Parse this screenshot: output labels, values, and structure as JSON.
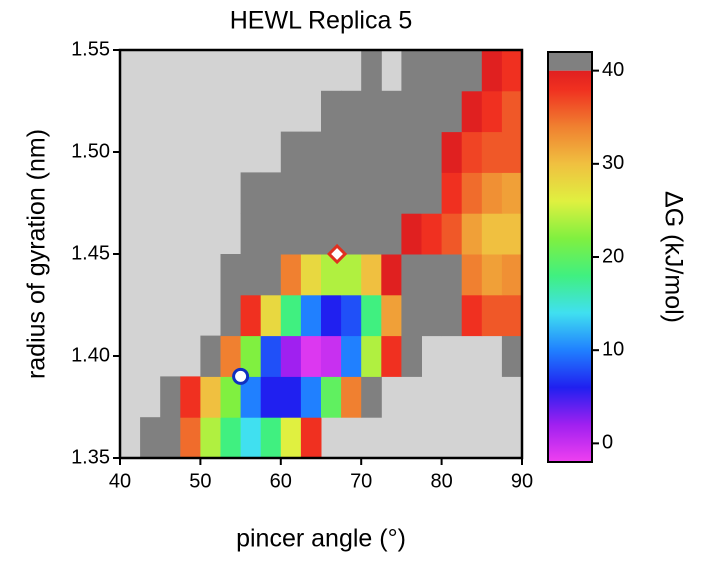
{
  "chart_data": {
    "type": "heatmap",
    "title": "HEWL Replica 5",
    "xlabel": "pincer angle (°)",
    "ylabel": "radius of gyration (nm)",
    "colorbar_label": "ΔG (kJ/mol)",
    "xlim": [
      40,
      90
    ],
    "xticks": [
      40,
      50,
      60,
      70,
      80,
      90
    ],
    "ylim": [
      1.35,
      1.55
    ],
    "yticks": [
      1.35,
      {
        "value": 1.4,
        "label": "1.40"
      },
      1.45,
      {
        "value": 1.5,
        "label": "1.50"
      },
      1.55
    ],
    "clim": [
      -2,
      42
    ],
    "cticks": [
      0,
      10,
      20,
      30,
      40
    ],
    "background": "#d3d3d3",
    "over_color": "#808080",
    "colorscale": [
      [
        -2,
        "#f040f0"
      ],
      [
        2,
        "#a020f0"
      ],
      [
        6,
        "#2020f0"
      ],
      [
        10,
        "#2080ff"
      ],
      [
        14,
        "#40e0f0"
      ],
      [
        18,
        "#40f080"
      ],
      [
        22,
        "#80f040"
      ],
      [
        26,
        "#e0f040"
      ],
      [
        30,
        "#f0c040"
      ],
      [
        34,
        "#f08030"
      ],
      [
        38,
        "#f03020"
      ],
      [
        40,
        "#e02020"
      ]
    ],
    "x_bins": [
      40,
      42.5,
      45,
      47.5,
      50,
      52.5,
      55,
      57.5,
      60,
      62.5,
      65,
      67.5,
      70,
      72.5,
      75,
      77.5,
      80,
      82.5,
      85,
      87.5,
      90
    ],
    "y_bins": [
      1.35,
      1.37,
      1.39,
      1.41,
      1.43,
      1.45,
      1.47,
      1.49,
      1.51,
      1.53,
      1.55
    ],
    "z": [
      [
        null,
        42,
        42,
        35,
        24,
        18,
        14,
        18,
        26,
        38,
        null,
        null,
        null,
        null,
        null,
        null,
        null,
        null,
        null,
        null
      ],
      [
        null,
        null,
        42,
        38,
        30,
        22,
        10,
        6,
        6,
        10,
        20,
        34,
        42,
        null,
        null,
        null,
        null,
        null,
        null,
        null
      ],
      [
        null,
        null,
        null,
        null,
        42,
        34,
        22,
        8,
        2,
        -1,
        0,
        10,
        24,
        38,
        42,
        null,
        null,
        null,
        null,
        42
      ],
      [
        null,
        null,
        null,
        null,
        null,
        42,
        38,
        28,
        18,
        10,
        6,
        8,
        18,
        32,
        42,
        42,
        42,
        38,
        36,
        36
      ],
      [
        null,
        null,
        null,
        null,
        null,
        42,
        42,
        42,
        34,
        28,
        24,
        24,
        30,
        40,
        42,
        42,
        42,
        34,
        32,
        33
      ],
      [
        null,
        null,
        null,
        null,
        null,
        null,
        42,
        42,
        42,
        42,
        42,
        42,
        42,
        42,
        40,
        38,
        36,
        32,
        30,
        30
      ],
      [
        null,
        null,
        null,
        null,
        null,
        null,
        42,
        42,
        42,
        42,
        42,
        42,
        42,
        42,
        42,
        42,
        38,
        35,
        33,
        32
      ],
      [
        null,
        null,
        null,
        null,
        null,
        null,
        null,
        null,
        42,
        42,
        42,
        42,
        42,
        42,
        42,
        42,
        40,
        37,
        36,
        36
      ],
      [
        null,
        null,
        null,
        null,
        null,
        null,
        null,
        null,
        null,
        null,
        42,
        42,
        42,
        42,
        42,
        42,
        42,
        40,
        38,
        36
      ],
      [
        null,
        null,
        null,
        null,
        null,
        null,
        null,
        null,
        null,
        null,
        null,
        null,
        42,
        null,
        42,
        42,
        42,
        42,
        40,
        38
      ]
    ],
    "markers": [
      {
        "shape": "circle",
        "x": 55,
        "y": 1.39,
        "color": "#1030c0"
      },
      {
        "shape": "diamond",
        "x": 67,
        "y": 1.45,
        "color": "#e03020"
      }
    ]
  }
}
